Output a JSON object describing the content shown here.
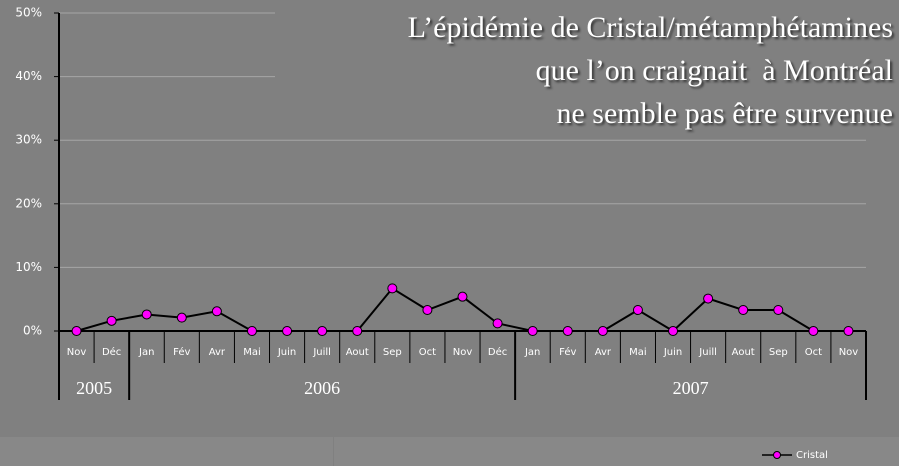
{
  "chart_data": {
    "type": "line",
    "title": [
      "L’épidémie de Cristal/métamphétamines",
      "que l’on craignait  à Montréal",
      "ne semble pas être survenue"
    ],
    "categories": [
      "Nov",
      "Déc",
      "Jan",
      "Fév",
      "Avr",
      "Mai",
      "Juin",
      "Juill",
      "Aout",
      "Sep",
      "Oct",
      "Nov",
      "Déc",
      "Jan",
      "Fév",
      "Avr",
      "Mai",
      "Juin",
      "Juill",
      "Aout",
      "Sep",
      "Oct",
      "Nov"
    ],
    "x_groups": [
      {
        "label": "2005",
        "count": 2
      },
      {
        "label": "2006",
        "count": 11
      },
      {
        "label": "2007",
        "count": 10
      }
    ],
    "series": [
      {
        "name": "Cristal",
        "color": "#ff00ff",
        "values": [
          0,
          1.6,
          2.6,
          2.1,
          3.1,
          0,
          0,
          0,
          0,
          6.7,
          3.3,
          5.4,
          1.2,
          0,
          0,
          0,
          3.3,
          0,
          5.1,
          3.3,
          3.3,
          0,
          0
        ]
      }
    ],
    "ylim": [
      0,
      50
    ],
    "yticks": [
      {
        "value": 0,
        "label": "0%"
      },
      {
        "value": 10,
        "label": "10%"
      },
      {
        "value": 20,
        "label": "20%"
      },
      {
        "value": 30,
        "label": "30%"
      },
      {
        "value": 40,
        "label": "40%"
      },
      {
        "value": 50,
        "label": "50%"
      }
    ],
    "grid": true,
    "legend": "bottom-right"
  }
}
